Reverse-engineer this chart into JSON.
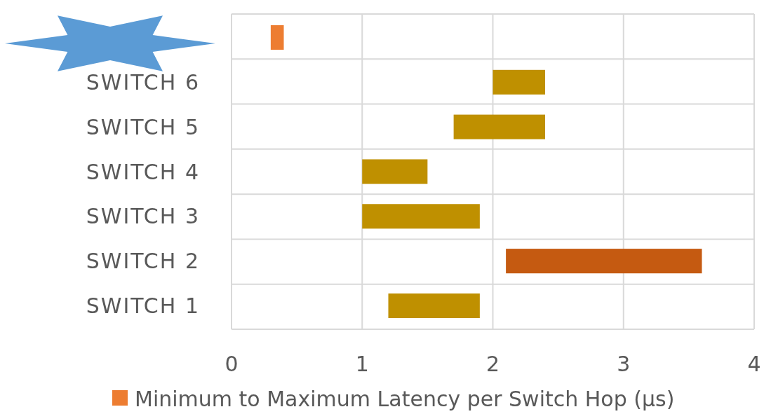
{
  "chart_data": {
    "type": "bar",
    "orientation": "horizontal",
    "categories": [
      null,
      "SWITCH 6",
      "SWITCH 5",
      "SWITCH 4",
      "SWITCH 3",
      "SWITCH 2",
      "SWITCH 1"
    ],
    "series": [
      {
        "name": "Minimum to Maximum Latency per Switch Hop (µs)",
        "color": "#ed7d31",
        "colors": [
          "#ed7d31",
          "#bf9000",
          "#bf9000",
          "#bf9000",
          "#bf9000",
          "#c55a11",
          "#bf9000"
        ],
        "base": [
          0.3,
          2.0,
          1.7,
          1.0,
          1.0,
          2.1,
          1.2
        ],
        "values": [
          0.1,
          0.4,
          0.7,
          0.5,
          0.9,
          1.5,
          0.7
        ]
      }
    ],
    "xlim": [
      0,
      4
    ],
    "xticks": [
      0,
      1,
      2,
      3,
      4
    ],
    "grid": "x",
    "legend": "bottom"
  }
}
